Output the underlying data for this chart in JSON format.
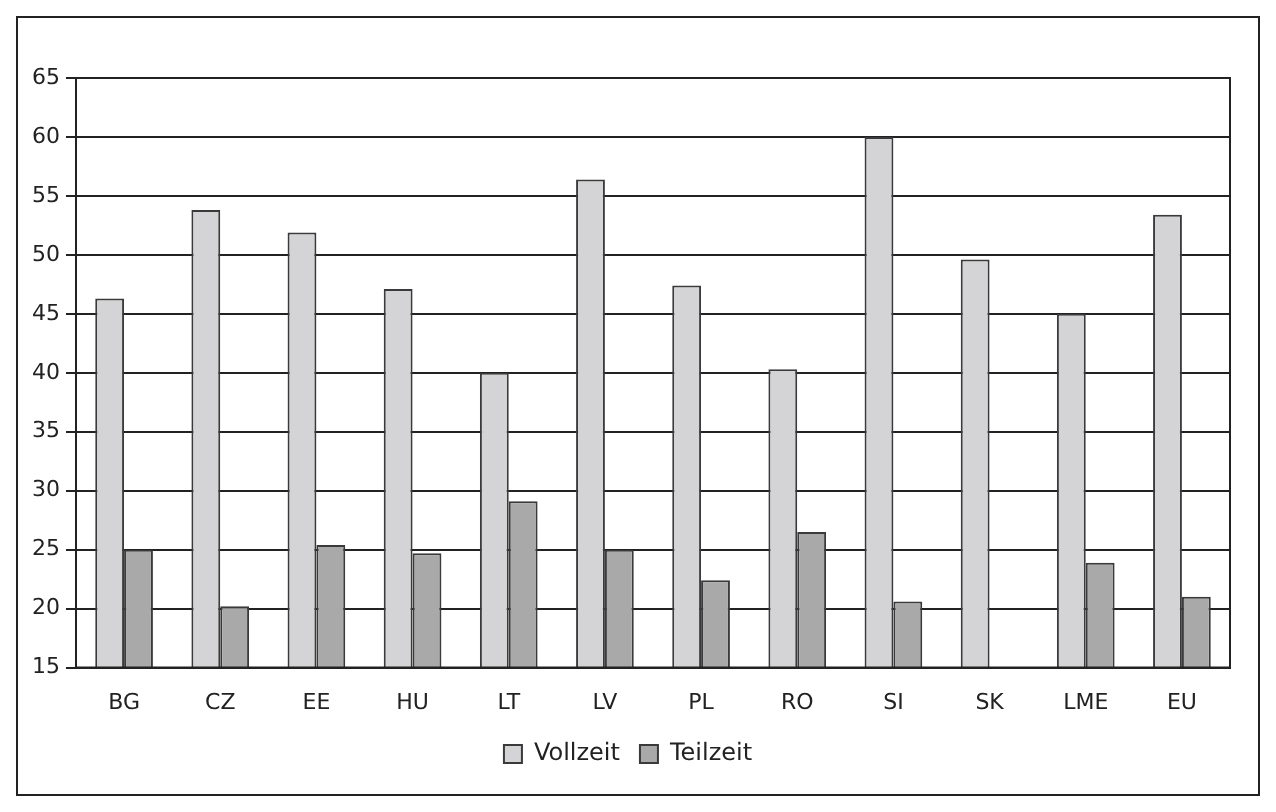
{
  "chart_data": {
    "type": "bar",
    "categories": [
      "BG",
      "CZ",
      "EE",
      "HU",
      "LT",
      "LV",
      "PL",
      "RO",
      "SI",
      "SK",
      "LME",
      "EU"
    ],
    "series": [
      {
        "name": "Vollzeit",
        "color": "#d4d4d6",
        "values": [
          46.3,
          53.8,
          51.9,
          47.1,
          40,
          56.4,
          47.4,
          40.3,
          60,
          49.6,
          45,
          53.4
        ]
      },
      {
        "name": "Teilzeit",
        "color": "#a9a9a9",
        "values": [
          25,
          20.2,
          25.4,
          24.7,
          29.1,
          25,
          22.4,
          26.5,
          20.6,
          null,
          23.9,
          21
        ]
      }
    ],
    "ylim": [
      15,
      65
    ],
    "yticks": [
      15,
      20,
      25,
      30,
      35,
      40,
      45,
      50,
      55,
      60,
      65
    ],
    "grid": "y",
    "legend": "bottom"
  }
}
